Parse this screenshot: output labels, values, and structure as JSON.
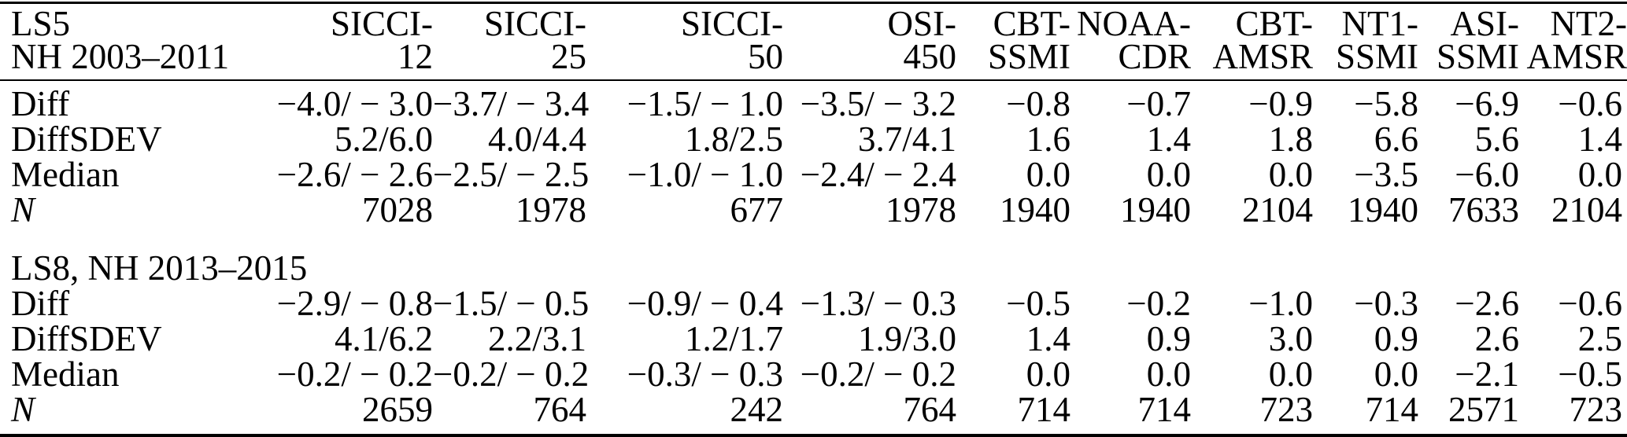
{
  "table": {
    "columns": [
      {
        "line1": "LS5",
        "line2": "NH 2003–2011"
      },
      {
        "line1": "SICCI-",
        "line2": "12"
      },
      {
        "line1": "SICCI-",
        "line2": "25"
      },
      {
        "line1": "SICCI-",
        "line2": "50"
      },
      {
        "line1": "OSI-",
        "line2": "450"
      },
      {
        "line1": "CBT-",
        "line2": "SSMI"
      },
      {
        "line1": "NOAA-",
        "line2": "CDR"
      },
      {
        "line1": "CBT-",
        "line2": "AMSR"
      },
      {
        "line1": "NT1-",
        "line2": "SSMI"
      },
      {
        "line1": "ASI-",
        "line2": "SSMI"
      },
      {
        "line1": "NT2-",
        "line2": "AMSR"
      }
    ],
    "sections": [
      {
        "title": "",
        "rows": [
          {
            "label": "Diff",
            "italic": false,
            "values": [
              "−4.0/ − 3.0",
              "−3.7/ − 3.4",
              "−1.5/ − 1.0",
              "−3.5/ − 3.2",
              "−0.8",
              "−0.7",
              "−0.9",
              "−5.8",
              "−6.9",
              "−0.6"
            ]
          },
          {
            "label": "DiffSDEV",
            "italic": false,
            "values": [
              "5.2/6.0",
              "4.0/4.4",
              "1.8/2.5",
              "3.7/4.1",
              "1.6",
              "1.4",
              "1.8",
              "6.6",
              "5.6",
              "1.4"
            ]
          },
          {
            "label": "Median",
            "italic": false,
            "values": [
              "−2.6/ − 2.6",
              "−2.5/ − 2.5",
              "−1.0/ − 1.0",
              "−2.4/ − 2.4",
              "0.0",
              "0.0",
              "0.0",
              "−3.5",
              "−6.0",
              "0.0"
            ]
          },
          {
            "label": "N",
            "italic": true,
            "values": [
              "7028",
              "1978",
              "677",
              "1978",
              "1940",
              "1940",
              "2104",
              "1940",
              "7633",
              "2104"
            ]
          }
        ]
      },
      {
        "title": "LS8, NH 2013–2015",
        "rows": [
          {
            "label": "Diff",
            "italic": false,
            "values": [
              "−2.9/ − 0.8",
              "−1.5/ − 0.5",
              "−0.9/ − 0.4",
              "−1.3/ − 0.3",
              "−0.5",
              "−0.2",
              "−1.0",
              "−0.3",
              "−2.6",
              "−0.6"
            ]
          },
          {
            "label": "DiffSDEV",
            "italic": false,
            "values": [
              "4.1/6.2",
              "2.2/3.1",
              "1.2/1.7",
              "1.9/3.0",
              "1.4",
              "0.9",
              "3.0",
              "0.9",
              "2.6",
              "2.5"
            ]
          },
          {
            "label": "Median",
            "italic": false,
            "values": [
              "−0.2/ − 0.2",
              "−0.2/ − 0.2",
              "−0.3/ − 0.3",
              "−0.2/ − 0.2",
              "0.0",
              "0.0",
              "0.0",
              "0.0",
              "−2.1",
              "−0.5"
            ]
          },
          {
            "label": "N",
            "italic": true,
            "values": [
              "2659",
              "764",
              "242",
              "764",
              "714",
              "714",
              "723",
              "714",
              "2571",
              "723"
            ]
          }
        ]
      }
    ],
    "colors": {
      "text": "#000000",
      "background": "#ffffff",
      "rule": "#000000"
    }
  }
}
